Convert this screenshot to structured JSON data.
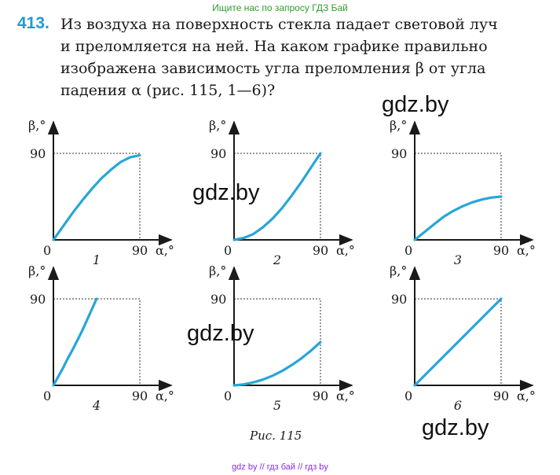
{
  "top_banner": "Ищите нас по запросу ГДЗ Бай",
  "problem": {
    "number": "413.",
    "lines": [
      "Из воздуха на поверхность стекла падает световой луч",
      "и преломляется на ней. На каком графике правильно",
      "изображена зависимость угла преломления β от угла",
      "падения α (рис. 115, 1—6)?"
    ]
  },
  "watermarks": [
    "gdz.by",
    "gdz.by",
    "gdz.by",
    "gdz.by"
  ],
  "axis_labels": {
    "y": "β,°",
    "x": "α,°",
    "max": "90",
    "origin": "0"
  },
  "caption": "Рис. 115",
  "footer": "gdz by // гдз бай // гдз by",
  "colors": {
    "curve": "#27a6d8",
    "accent": "#1f9bd2"
  },
  "chart_data": [
    {
      "type": "line",
      "label": "1",
      "x": [
        0,
        10,
        20,
        30,
        40,
        50,
        60,
        70,
        80,
        90
      ],
      "y": [
        0,
        14,
        28,
        41,
        53,
        64,
        73,
        81,
        86,
        88
      ],
      "ylabel": "β,°",
      "xlabel": "α,°",
      "xlim": [
        0,
        90
      ],
      "ylim": [
        0,
        90
      ]
    },
    {
      "type": "line",
      "label": "2",
      "x": [
        0,
        10,
        20,
        30,
        40,
        50,
        60,
        70,
        80,
        90
      ],
      "y": [
        0,
        2,
        6,
        13,
        22,
        33,
        46,
        60,
        75,
        90
      ],
      "ylabel": "β,°",
      "xlabel": "α,°",
      "xlim": [
        0,
        90
      ],
      "ylim": [
        0,
        90
      ]
    },
    {
      "type": "line",
      "label": "3",
      "x": [
        0,
        10,
        20,
        30,
        40,
        50,
        60,
        70,
        80,
        90
      ],
      "y": [
        0,
        8,
        16,
        24,
        30,
        35,
        39,
        42,
        44,
        45
      ],
      "ylabel": "β,°",
      "xlabel": "α,°",
      "xlim": [
        0,
        90
      ],
      "ylim": [
        0,
        90
      ]
    },
    {
      "type": "line",
      "label": "4",
      "x": [
        0,
        5,
        10,
        15,
        20,
        25,
        30,
        35,
        40,
        45
      ],
      "y": [
        0,
        9,
        18,
        28,
        37,
        47,
        57,
        68,
        79,
        90
      ],
      "ylabel": "β,°",
      "xlabel": "α,°",
      "xlim": [
        0,
        90
      ],
      "ylim": [
        0,
        90
      ]
    },
    {
      "type": "line",
      "label": "5",
      "x": [
        0,
        10,
        20,
        30,
        40,
        50,
        60,
        70,
        80,
        90
      ],
      "y": [
        0,
        1,
        3,
        6,
        10,
        15,
        21,
        28,
        36,
        45
      ],
      "ylabel": "β,°",
      "xlabel": "α,°",
      "xlim": [
        0,
        90
      ],
      "ylim": [
        0,
        90
      ]
    },
    {
      "type": "line",
      "label": "6",
      "x": [
        0,
        90
      ],
      "y": [
        0,
        90
      ],
      "ylabel": "β,°",
      "xlabel": "α,°",
      "xlim": [
        0,
        90
      ],
      "ylim": [
        0,
        90
      ]
    }
  ]
}
